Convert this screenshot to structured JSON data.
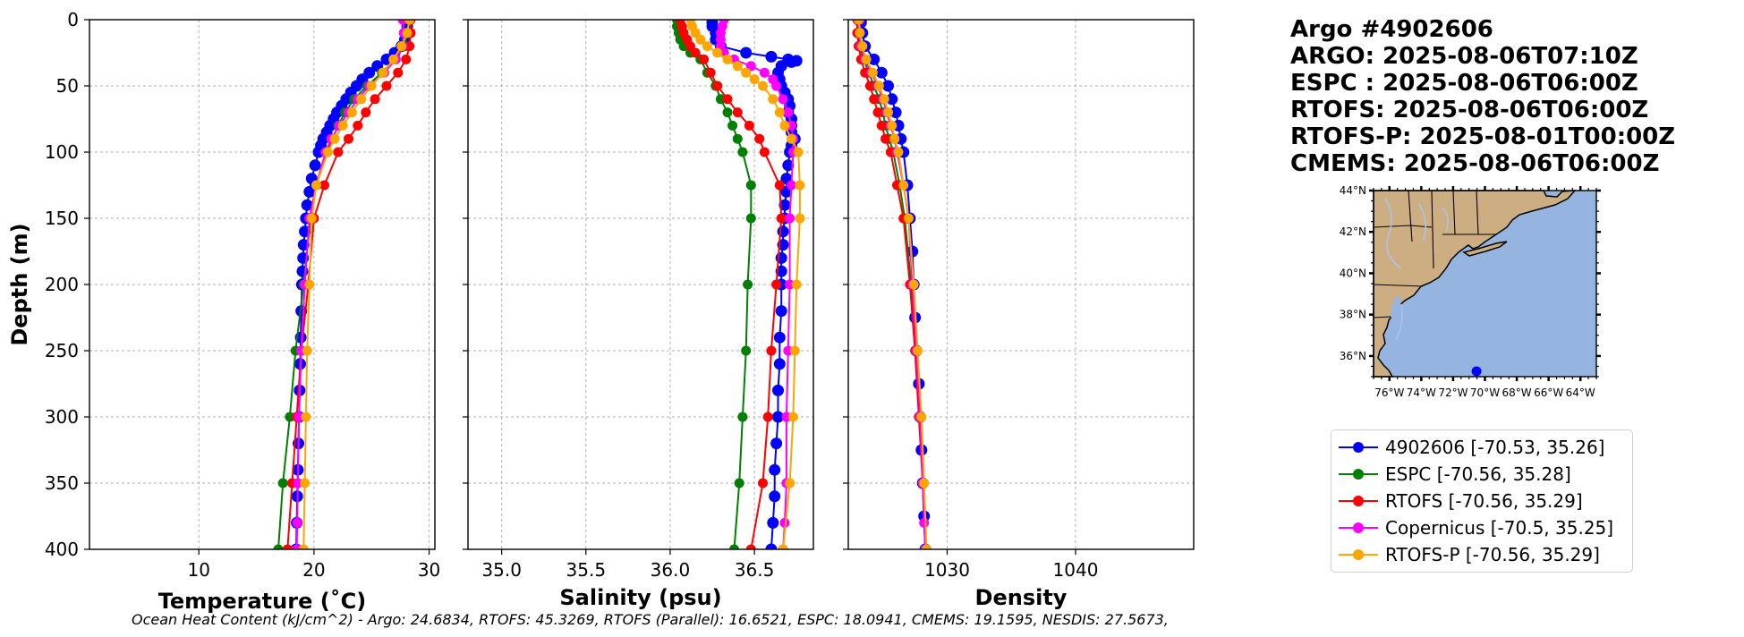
{
  "title_lines": [
    "Argo #4902606",
    "ARGO: 2025-08-06T07:10Z",
    "ESPC : 2025-08-06T06:00Z",
    "RTOFS: 2025-08-06T06:00Z",
    "RTOFS-P: 2025-08-01T00:00Z",
    "CMEMS: 2025-08-06T06:00Z"
  ],
  "legend": [
    {
      "label": "4902606 [-70.53, 35.26]",
      "color": "#0000ff"
    },
    {
      "label": "ESPC [-70.56, 35.28]",
      "color": "#008000"
    },
    {
      "label": "RTOFS [-70.56, 35.29]",
      "color": "#ff0000"
    },
    {
      "label": "Copernicus [-70.5, 35.25]",
      "color": "#ff00ff"
    },
    {
      "label": "RTOFS-P [-70.56, 35.29]",
      "color": "#ffa500"
    }
  ],
  "footer": "Ocean Heat Content (kJ/cm^2) - Argo: 24.6834,  RTOFS: 45.3269,  RTOFS (Parallel): 16.6521,  ESPC: 18.0941,  CMEMS: 19.1595,  NESDIS: 27.5673,",
  "chart_data": [
    {
      "type": "line",
      "id": "temperature",
      "xlabel": "Temperature (˚C)",
      "ylabel": "Depth (m)",
      "xlim": [
        0.5,
        30.5
      ],
      "ylim": [
        400,
        0
      ],
      "xticks": [
        10,
        20,
        30
      ],
      "yticks": [
        0,
        50,
        100,
        150,
        200,
        250,
        300,
        350,
        400
      ],
      "grid": true,
      "series": [
        {
          "name": "4902606",
          "color": "#0000ff",
          "depth": [
            2,
            5,
            10,
            15,
            20,
            25,
            30,
            35,
            40,
            45,
            50,
            55,
            60,
            65,
            70,
            75,
            80,
            85,
            90,
            95,
            100,
            110,
            120,
            130,
            140,
            150,
            160,
            170,
            180,
            190,
            200,
            220,
            240,
            260,
            280,
            300,
            320,
            340,
            360,
            380,
            400
          ],
          "values": [
            28.1,
            28.1,
            28.0,
            27.9,
            27.6,
            27.0,
            26.3,
            25.5,
            24.8,
            24.2,
            23.7,
            23.2,
            22.8,
            22.4,
            22.0,
            21.7,
            21.4,
            21.1,
            20.8,
            20.6,
            20.4,
            20.1,
            19.8,
            19.6,
            19.4,
            19.3,
            19.2,
            19.1,
            19.05,
            19.0,
            18.95,
            18.9,
            18.85,
            18.8,
            18.75,
            18.7,
            18.65,
            18.6,
            18.55,
            18.5,
            18.45
          ]
        },
        {
          "name": "ESPC",
          "color": "#008000",
          "depth": [
            0,
            10,
            20,
            30,
            40,
            50,
            60,
            70,
            80,
            90,
            100,
            125,
            150,
            200,
            250,
            300,
            350,
            400
          ],
          "values": [
            28.2,
            28.1,
            27.9,
            27.0,
            25.9,
            24.6,
            23.5,
            22.7,
            22.1,
            21.6,
            21.1,
            20.2,
            19.7,
            19.1,
            18.4,
            17.9,
            17.3,
            16.9
          ]
        },
        {
          "name": "RTOFS",
          "color": "#ff0000",
          "depth": [
            0,
            10,
            20,
            30,
            40,
            50,
            60,
            70,
            80,
            90,
            100,
            125,
            150,
            200,
            250,
            300,
            350,
            400
          ],
          "values": [
            28.4,
            28.4,
            28.3,
            28.0,
            27.3,
            26.3,
            25.3,
            24.5,
            23.8,
            23.0,
            22.1,
            20.9,
            20.0,
            19.5,
            18.9,
            18.5,
            18.1,
            17.7
          ]
        },
        {
          "name": "Copernicus",
          "color": "#ff00ff",
          "depth": [
            0,
            10,
            20,
            30,
            40,
            50,
            60,
            70,
            80,
            90,
            100,
            125,
            150,
            200,
            250,
            300,
            350,
            380,
            400
          ],
          "values": [
            27.7,
            27.8,
            27.7,
            27.1,
            26.1,
            24.8,
            23.8,
            23.0,
            22.2,
            21.5,
            21.0,
            20.2,
            19.6,
            19.2,
            18.9,
            18.7,
            18.6,
            18.55,
            18.5
          ]
        },
        {
          "name": "RTOFS-P",
          "color": "#ffa500",
          "depth": [
            0,
            10,
            20,
            30,
            40,
            50,
            60,
            70,
            80,
            90,
            100,
            125,
            150,
            200,
            250,
            300,
            350,
            400
          ],
          "values": [
            28.3,
            28.1,
            27.6,
            26.9,
            26.0,
            25.0,
            24.1,
            23.3,
            22.5,
            21.8,
            21.2,
            20.2,
            19.8,
            19.6,
            19.4,
            19.3,
            19.2,
            19.1
          ]
        }
      ]
    },
    {
      "type": "line",
      "id": "salinity",
      "xlabel": "Salinity (psu)",
      "ylabel": "",
      "xlim": [
        34.8,
        36.85
      ],
      "ylim": [
        400,
        0
      ],
      "xticks": [
        35.0,
        35.5,
        36.0,
        36.5
      ],
      "yticks": [
        0,
        50,
        100,
        150,
        200,
        250,
        300,
        350,
        400
      ],
      "grid": true,
      "series": [
        {
          "name": "4902606",
          "color": "#0000ff",
          "depth": [
            2,
            5,
            10,
            15,
            20,
            25,
            28,
            30,
            31,
            32,
            35,
            40,
            45,
            50,
            55,
            60,
            65,
            70,
            75,
            80,
            85,
            90,
            95,
            100,
            110,
            120,
            130,
            140,
            150,
            160,
            170,
            180,
            190,
            200,
            220,
            240,
            260,
            280,
            300,
            320,
            340,
            360,
            380,
            400
          ],
          "values": [
            36.25,
            36.25,
            36.27,
            36.27,
            36.3,
            36.45,
            36.6,
            36.7,
            36.75,
            36.72,
            36.66,
            36.64,
            36.65,
            36.66,
            36.68,
            36.7,
            36.71,
            36.7,
            36.72,
            36.72,
            36.72,
            36.74,
            36.72,
            36.71,
            36.7,
            36.69,
            36.69,
            36.68,
            36.68,
            36.67,
            36.67,
            36.66,
            36.66,
            36.66,
            36.66,
            36.65,
            36.65,
            36.64,
            36.64,
            36.63,
            36.62,
            36.62,
            36.61,
            36.6
          ]
        },
        {
          "name": "ESPC",
          "color": "#008000",
          "depth": [
            0,
            5,
            10,
            15,
            20,
            25,
            30,
            40,
            50,
            60,
            70,
            80,
            90,
            100,
            125,
            150,
            200,
            250,
            300,
            350,
            400
          ],
          "values": [
            36.04,
            36.04,
            36.05,
            36.06,
            36.08,
            36.12,
            36.18,
            36.22,
            36.27,
            36.3,
            36.34,
            36.37,
            36.4,
            36.43,
            36.48,
            36.48,
            36.46,
            36.45,
            36.43,
            36.41,
            36.38
          ]
        },
        {
          "name": "RTOFS",
          "color": "#ff0000",
          "depth": [
            0,
            5,
            10,
            15,
            20,
            25,
            30,
            40,
            50,
            60,
            70,
            80,
            90,
            100,
            125,
            150,
            200,
            250,
            300,
            350,
            400
          ],
          "values": [
            36.06,
            36.07,
            36.08,
            36.1,
            36.12,
            36.15,
            36.2,
            36.24,
            36.28,
            36.34,
            36.4,
            36.47,
            36.53,
            36.56,
            36.65,
            36.66,
            36.63,
            36.6,
            36.58,
            36.55,
            36.48
          ]
        },
        {
          "name": "Copernicus",
          "color": "#ff00ff",
          "depth": [
            0,
            5,
            10,
            15,
            20,
            25,
            30,
            35,
            40,
            45,
            50,
            60,
            70,
            80,
            90,
            100,
            125,
            150,
            200,
            250,
            300,
            350,
            380,
            400
          ],
          "values": [
            36.32,
            36.31,
            36.3,
            36.3,
            36.3,
            36.32,
            36.38,
            36.48,
            36.56,
            36.61,
            36.63,
            36.67,
            36.7,
            36.72,
            36.73,
            36.73,
            36.72,
            36.71,
            36.71,
            36.7,
            36.69,
            36.69,
            36.68,
            36.67
          ]
        },
        {
          "name": "RTOFS-P",
          "color": "#ffa500",
          "depth": [
            0,
            5,
            10,
            15,
            20,
            25,
            30,
            35,
            40,
            45,
            50,
            60,
            70,
            80,
            90,
            100,
            125,
            150,
            200,
            250,
            300,
            350,
            400
          ],
          "values": [
            36.12,
            36.13,
            36.15,
            36.18,
            36.22,
            36.28,
            36.34,
            36.4,
            36.45,
            36.5,
            36.55,
            36.61,
            36.65,
            36.68,
            36.72,
            36.76,
            36.77,
            36.77,
            36.75,
            36.74,
            36.73,
            36.71,
            36.67
          ]
        }
      ]
    },
    {
      "type": "line",
      "id": "density",
      "xlabel": "Density",
      "ylabel": "",
      "xlim": [
        1022.3,
        1049.2
      ],
      "ylim": [
        400,
        0
      ],
      "xticks": [
        1030,
        1040
      ],
      "yticks": [
        0,
        50,
        100,
        150,
        200,
        250,
        300,
        350,
        400
      ],
      "grid": true,
      "series": [
        {
          "name": "4902606",
          "color": "#0000ff",
          "depth": [
            2,
            10,
            20,
            30,
            40,
            50,
            60,
            70,
            80,
            90,
            100,
            125,
            150,
            175,
            200,
            225,
            250,
            275,
            300,
            325,
            350,
            375,
            400
          ],
          "values": [
            1023.3,
            1023.4,
            1023.6,
            1024.3,
            1024.9,
            1025.4,
            1025.7,
            1026.0,
            1026.2,
            1026.4,
            1026.6,
            1026.9,
            1027.1,
            1027.3,
            1027.4,
            1027.5,
            1027.6,
            1027.8,
            1027.9,
            1028.0,
            1028.1,
            1028.2,
            1028.3
          ]
        },
        {
          "name": "ESPC",
          "color": "#008000",
          "depth": [
            0,
            10,
            20,
            30,
            40,
            50,
            60,
            70,
            80,
            90,
            100,
            125,
            150,
            200,
            250,
            300,
            350,
            400
          ],
          "values": [
            1023.1,
            1023.1,
            1023.2,
            1023.5,
            1023.9,
            1024.3,
            1024.7,
            1025.0,
            1025.2,
            1025.5,
            1025.8,
            1026.3,
            1026.7,
            1027.2,
            1027.6,
            1027.9,
            1028.1,
            1028.3
          ]
        },
        {
          "name": "RTOFS",
          "color": "#ff0000",
          "depth": [
            0,
            10,
            20,
            30,
            40,
            50,
            60,
            70,
            80,
            90,
            100,
            125,
            150,
            200,
            250,
            300,
            350,
            400
          ],
          "values": [
            1023.0,
            1023.0,
            1023.1,
            1023.3,
            1023.6,
            1024.0,
            1024.3,
            1024.6,
            1024.9,
            1025.2,
            1025.6,
            1026.1,
            1026.6,
            1027.1,
            1027.5,
            1027.8,
            1028.1,
            1028.4
          ]
        },
        {
          "name": "Copernicus",
          "color": "#ff00ff",
          "depth": [
            0,
            10,
            20,
            30,
            40,
            50,
            60,
            70,
            80,
            90,
            100,
            125,
            150,
            200,
            250,
            300,
            350,
            380,
            400
          ],
          "values": [
            1023.2,
            1023.2,
            1023.3,
            1023.6,
            1024.1,
            1024.6,
            1025.0,
            1025.3,
            1025.6,
            1025.9,
            1026.1,
            1026.6,
            1027.0,
            1027.3,
            1027.6,
            1027.9,
            1028.1,
            1028.2,
            1028.3
          ]
        },
        {
          "name": "RTOFS-P",
          "color": "#ffa500",
          "depth": [
            0,
            10,
            20,
            30,
            40,
            50,
            60,
            70,
            80,
            90,
            100,
            125,
            150,
            200,
            250,
            300,
            350,
            400
          ],
          "values": [
            1023.1,
            1023.2,
            1023.4,
            1023.7,
            1024.2,
            1024.7,
            1025.1,
            1025.4,
            1025.7,
            1025.9,
            1026.2,
            1026.6,
            1027.0,
            1027.4,
            1027.7,
            1028.0,
            1028.2,
            1028.4
          ]
        }
      ]
    }
  ],
  "map": {
    "lat_labels": [
      "44°N",
      "42°N",
      "40°N",
      "38°N",
      "36°N"
    ],
    "lon_labels": [
      "76°W",
      "74°W",
      "72°W",
      "70°W",
      "68°W",
      "66°W",
      "64°W"
    ],
    "lon_range": [
      -77,
      -63
    ],
    "lat_range": [
      35,
      44
    ],
    "float_position": {
      "lon": -70.53,
      "lat": 35.26
    },
    "ocean_color": "#96b4e0",
    "land_color": "#cdae82",
    "marker_color": "#0000ff"
  }
}
